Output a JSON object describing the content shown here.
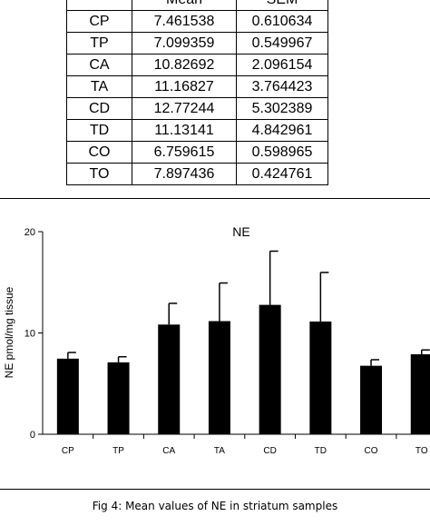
{
  "table": {
    "headers": [
      "",
      "Mean",
      "SEM"
    ],
    "rows": [
      [
        "CP",
        "7.461538",
        "0.610634"
      ],
      [
        "TP",
        "7.099359",
        "0.549967"
      ],
      [
        "CA",
        "10.82692",
        "2.096154"
      ],
      [
        "TA",
        "11.16827",
        "3.764423"
      ],
      [
        "CD",
        "12.77244",
        "5.302389"
      ],
      [
        "TD",
        "11.13141",
        "4.842961"
      ],
      [
        "CO",
        "6.759615",
        "0.598965"
      ],
      [
        "TO",
        "7.897436",
        "0.424761"
      ]
    ]
  },
  "chart_data": {
    "type": "bar",
    "title": "NE",
    "xlabel": "",
    "ylabel": "NE pmol/mg tissue",
    "categories": [
      "CP",
      "TP",
      "CA",
      "TA",
      "CD",
      "TD",
      "CO",
      "TO"
    ],
    "values": [
      7.461538,
      7.099359,
      10.82692,
      11.16827,
      12.77244,
      11.13141,
      6.759615,
      7.897436
    ],
    "errors": [
      0.610634,
      0.549967,
      2.096154,
      3.764423,
      5.302389,
      4.842961,
      0.598965,
      0.424761
    ],
    "ylim": [
      0,
      20
    ],
    "yticks": [
      "0",
      "10",
      "20"
    ],
    "bar_color": "#000000",
    "grid": false,
    "legend": "none"
  },
  "caption": "Fig 4: Mean values of NE in striatum samples"
}
